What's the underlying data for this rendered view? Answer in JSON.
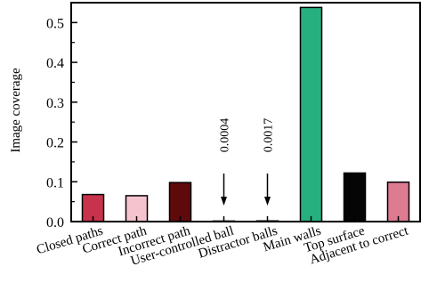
{
  "chart_data": {
    "type": "bar",
    "title": "",
    "xlabel": "",
    "ylabel": "Image coverage",
    "ylim": [
      0,
      0.55
    ],
    "yticks": [
      0.0,
      0.1,
      0.2,
      0.3,
      0.4,
      0.5
    ],
    "ytick_labels": [
      "0.0",
      "0.1",
      "0.2",
      "0.3",
      "0.4",
      "0.5"
    ],
    "grid": false,
    "categories": [
      "Closed paths",
      "Correct path",
      "Incorrect path",
      "User-controlled ball",
      "Distractor balls",
      "Main walls",
      "Top surface",
      "Adjacent to correct"
    ],
    "values": [
      0.068,
      0.065,
      0.098,
      0.0004,
      0.0017,
      0.538,
      0.122,
      0.099
    ],
    "bar_colors": [
      "#c8324a",
      "#f4c3cd",
      "#5e0a0d",
      "#7a2a35",
      "#7a2a35",
      "#26b07f",
      "#050505",
      "#dc7b92"
    ],
    "annotations": [
      {
        "category_index": 3,
        "text": "0.0004"
      },
      {
        "category_index": 4,
        "text": "0.0017"
      }
    ]
  }
}
